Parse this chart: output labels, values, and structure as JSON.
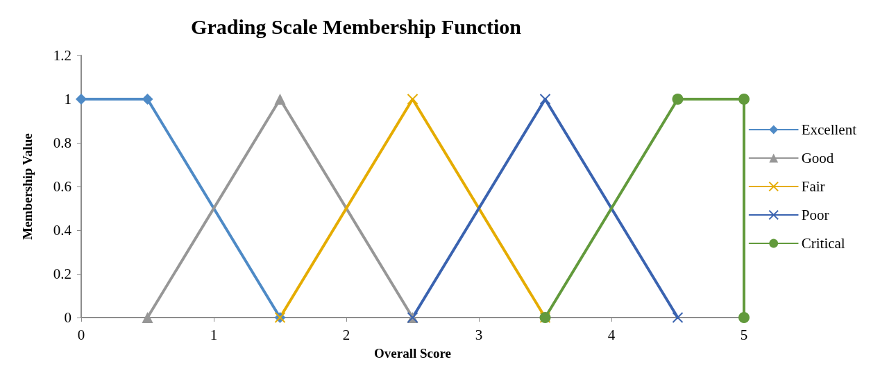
{
  "chart_data": {
    "type": "line",
    "title": "Grading Scale Membership Function",
    "xlabel": "Overall Score",
    "ylabel": "Membership Value",
    "xlim": [
      0,
      5
    ],
    "xticks": [
      0,
      1,
      2,
      3,
      4,
      5
    ],
    "ylim": [
      0,
      1.2
    ],
    "yticks": [
      0,
      0.2,
      0.4,
      0.6,
      0.8,
      1,
      1.2
    ],
    "grid": false,
    "legend": "right",
    "line_style": "solid",
    "series": [
      {
        "name": "Excellent",
        "color": "#4e8ac6",
        "marker": "diamond",
        "x": [
          0,
          0.5,
          1.5
        ],
        "values": [
          1,
          1,
          0
        ]
      },
      {
        "name": "Good",
        "color": "#979797",
        "marker": "triangle",
        "x": [
          0.5,
          1.5,
          2.5
        ],
        "values": [
          0,
          1,
          0
        ]
      },
      {
        "name": "Fair",
        "color": "#e5ac00",
        "marker": "cross",
        "x": [
          1.5,
          2.5,
          3.5
        ],
        "values": [
          0,
          1,
          0
        ]
      },
      {
        "name": "Poor",
        "color": "#3a63b0",
        "marker": "cross",
        "x": [
          2.5,
          3.5,
          4.5
        ],
        "values": [
          0,
          1,
          0
        ]
      },
      {
        "name": "Critical",
        "color": "#629a3c",
        "marker": "circle",
        "x": [
          3.5,
          4.5,
          5,
          5
        ],
        "values": [
          0,
          1,
          1,
          0
        ]
      }
    ]
  }
}
